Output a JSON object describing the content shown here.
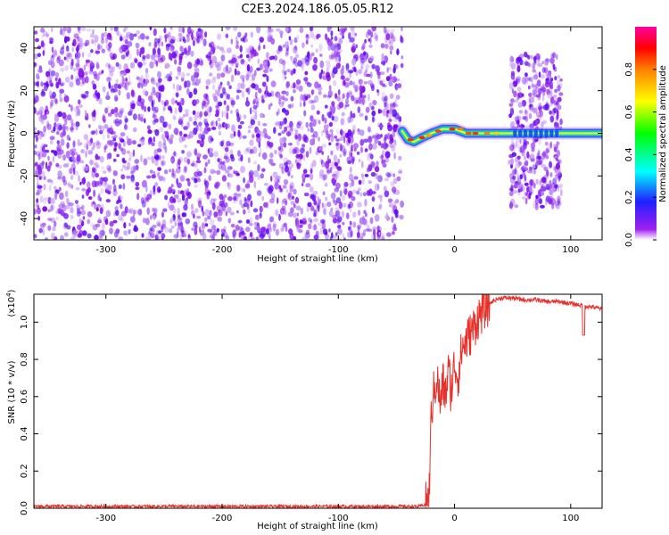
{
  "title": "C2E3.2024.186.05.05.R12",
  "chart_data": [
    {
      "type": "heatmap",
      "xlabel": "Height of straight line (km)",
      "ylabel": "Frequency (Hz)",
      "xlim": [
        -362,
        127
      ],
      "ylim": [
        -50,
        50
      ],
      "xticks": [
        -300,
        -200,
        -100,
        0,
        100
      ],
      "xtick_labels": [
        "-300",
        "-200",
        "-100",
        "0",
        "100"
      ],
      "yticks": [
        -40,
        -20,
        0,
        20,
        40
      ],
      "ytick_labels": [
        "-40",
        "-20",
        "0",
        "20",
        "40"
      ],
      "colorbar": {
        "label": "Normalized spectral amplitude",
        "range": [
          0,
          1
        ],
        "ticks": [
          0,
          0.2,
          0.4,
          0.6,
          0.8
        ],
        "tick_labels": [
          "0.0",
          "0.2",
          "0.4",
          "0.6",
          "0.8"
        ],
        "colormap": "rainbow"
      },
      "regions": [
        {
          "x": [
            -362,
            -45
          ],
          "freq": [
            -50,
            50
          ],
          "amplitude": [
            0.0,
            0.15
          ],
          "pattern": "scattered noise"
        },
        {
          "x": [
            -45,
            127
          ],
          "freq": [
            -3,
            3
          ],
          "amplitude": [
            0.3,
            0.9
          ],
          "pattern": "narrow band near 0 Hz"
        },
        {
          "x": [
            48,
            92
          ],
          "freq": [
            -35,
            37
          ],
          "amplitude": [
            0.0,
            0.15
          ],
          "pattern": "scattered noise"
        }
      ],
      "band_center": [
        {
          "x": -45,
          "freq": 1
        },
        {
          "x": -40,
          "freq": -3
        },
        {
          "x": -35,
          "freq": -4
        },
        {
          "x": -28,
          "freq": -2
        },
        {
          "x": -20,
          "freq": 0
        },
        {
          "x": -10,
          "freq": 2
        },
        {
          "x": 0,
          "freq": 2
        },
        {
          "x": 10,
          "freq": 0
        },
        {
          "x": 20,
          "freq": 0
        },
        {
          "x": 60,
          "freq": 0
        },
        {
          "x": 127,
          "freq": 0
        }
      ]
    },
    {
      "type": "line",
      "xlabel": "Height of straight line (km)",
      "ylabel": "SNR (10 * v/v)",
      "y_scale_label": "(x10",
      "y_scale_exponent": "4",
      "y_scale_suffix": ")",
      "xlim": [
        -362,
        127
      ],
      "ylim": [
        0,
        1.15
      ],
      "xticks": [
        -300,
        -200,
        -100,
        0,
        100
      ],
      "xtick_labels": [
        "-300",
        "-200",
        "-100",
        "0",
        "100"
      ],
      "yticks": [
        0,
        0.2,
        0.4,
        0.6,
        0.8,
        1.0
      ],
      "ytick_labels": [
        "0.0",
        "0.2",
        "0.4",
        "0.6",
        "0.8",
        "1.0"
      ],
      "series": [
        {
          "color": "#e8302a",
          "x": [
            -362,
            -300,
            -200,
            -100,
            -30,
            -25,
            -22,
            -20,
            -18,
            -15,
            -12,
            -10,
            -8,
            -5,
            -3,
            0,
            3,
            6,
            10,
            15,
            20,
            25,
            30,
            35,
            40,
            50,
            60,
            70,
            80,
            90,
            100,
            110,
            120,
            127
          ],
          "y": [
            0.01,
            0.01,
            0.01,
            0.01,
            0.01,
            0.02,
            0.05,
            0.5,
            0.62,
            0.7,
            0.55,
            0.68,
            0.6,
            0.75,
            0.62,
            0.78,
            0.7,
            0.85,
            0.9,
            0.95,
            1.02,
            1.07,
            1.1,
            1.12,
            1.13,
            1.13,
            1.12,
            1.12,
            1.11,
            1.11,
            1.1,
            1.09,
            1.08,
            1.07
          ]
        }
      ]
    }
  ]
}
